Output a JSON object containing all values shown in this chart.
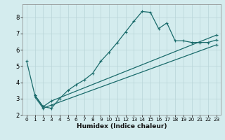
{
  "xlabel": "Humidex (Indice chaleur)",
  "ylabel": "",
  "bg_color": "#d4ecee",
  "grid_color": "#b8d4d8",
  "line_color": "#1a6b6b",
  "xlim": [
    -0.5,
    23.5
  ],
  "ylim": [
    2.0,
    8.8
  ],
  "yticks": [
    2,
    3,
    4,
    5,
    6,
    7,
    8
  ],
  "xticks": [
    0,
    1,
    2,
    3,
    4,
    5,
    6,
    7,
    8,
    9,
    10,
    11,
    12,
    13,
    14,
    15,
    16,
    17,
    18,
    19,
    20,
    21,
    22,
    23
  ],
  "series1_x": [
    0,
    1,
    2,
    3,
    4,
    5,
    6,
    7,
    8,
    9,
    10,
    11,
    12,
    13,
    14,
    15,
    16,
    17,
    18,
    19,
    20,
    21,
    22,
    23
  ],
  "series1_y": [
    5.3,
    3.2,
    2.5,
    2.4,
    3.0,
    3.5,
    3.85,
    4.15,
    4.55,
    5.3,
    5.85,
    6.45,
    7.1,
    7.75,
    8.35,
    8.3,
    7.3,
    7.65,
    6.55,
    6.55,
    6.45,
    6.45,
    6.45,
    6.6
  ],
  "series2_x": [
    1,
    2,
    3,
    23
  ],
  "series2_y": [
    3.2,
    2.5,
    2.85,
    6.9
  ],
  "series3_x": [
    1,
    2,
    3,
    23
  ],
  "series3_y": [
    3.1,
    2.4,
    2.6,
    6.3
  ]
}
